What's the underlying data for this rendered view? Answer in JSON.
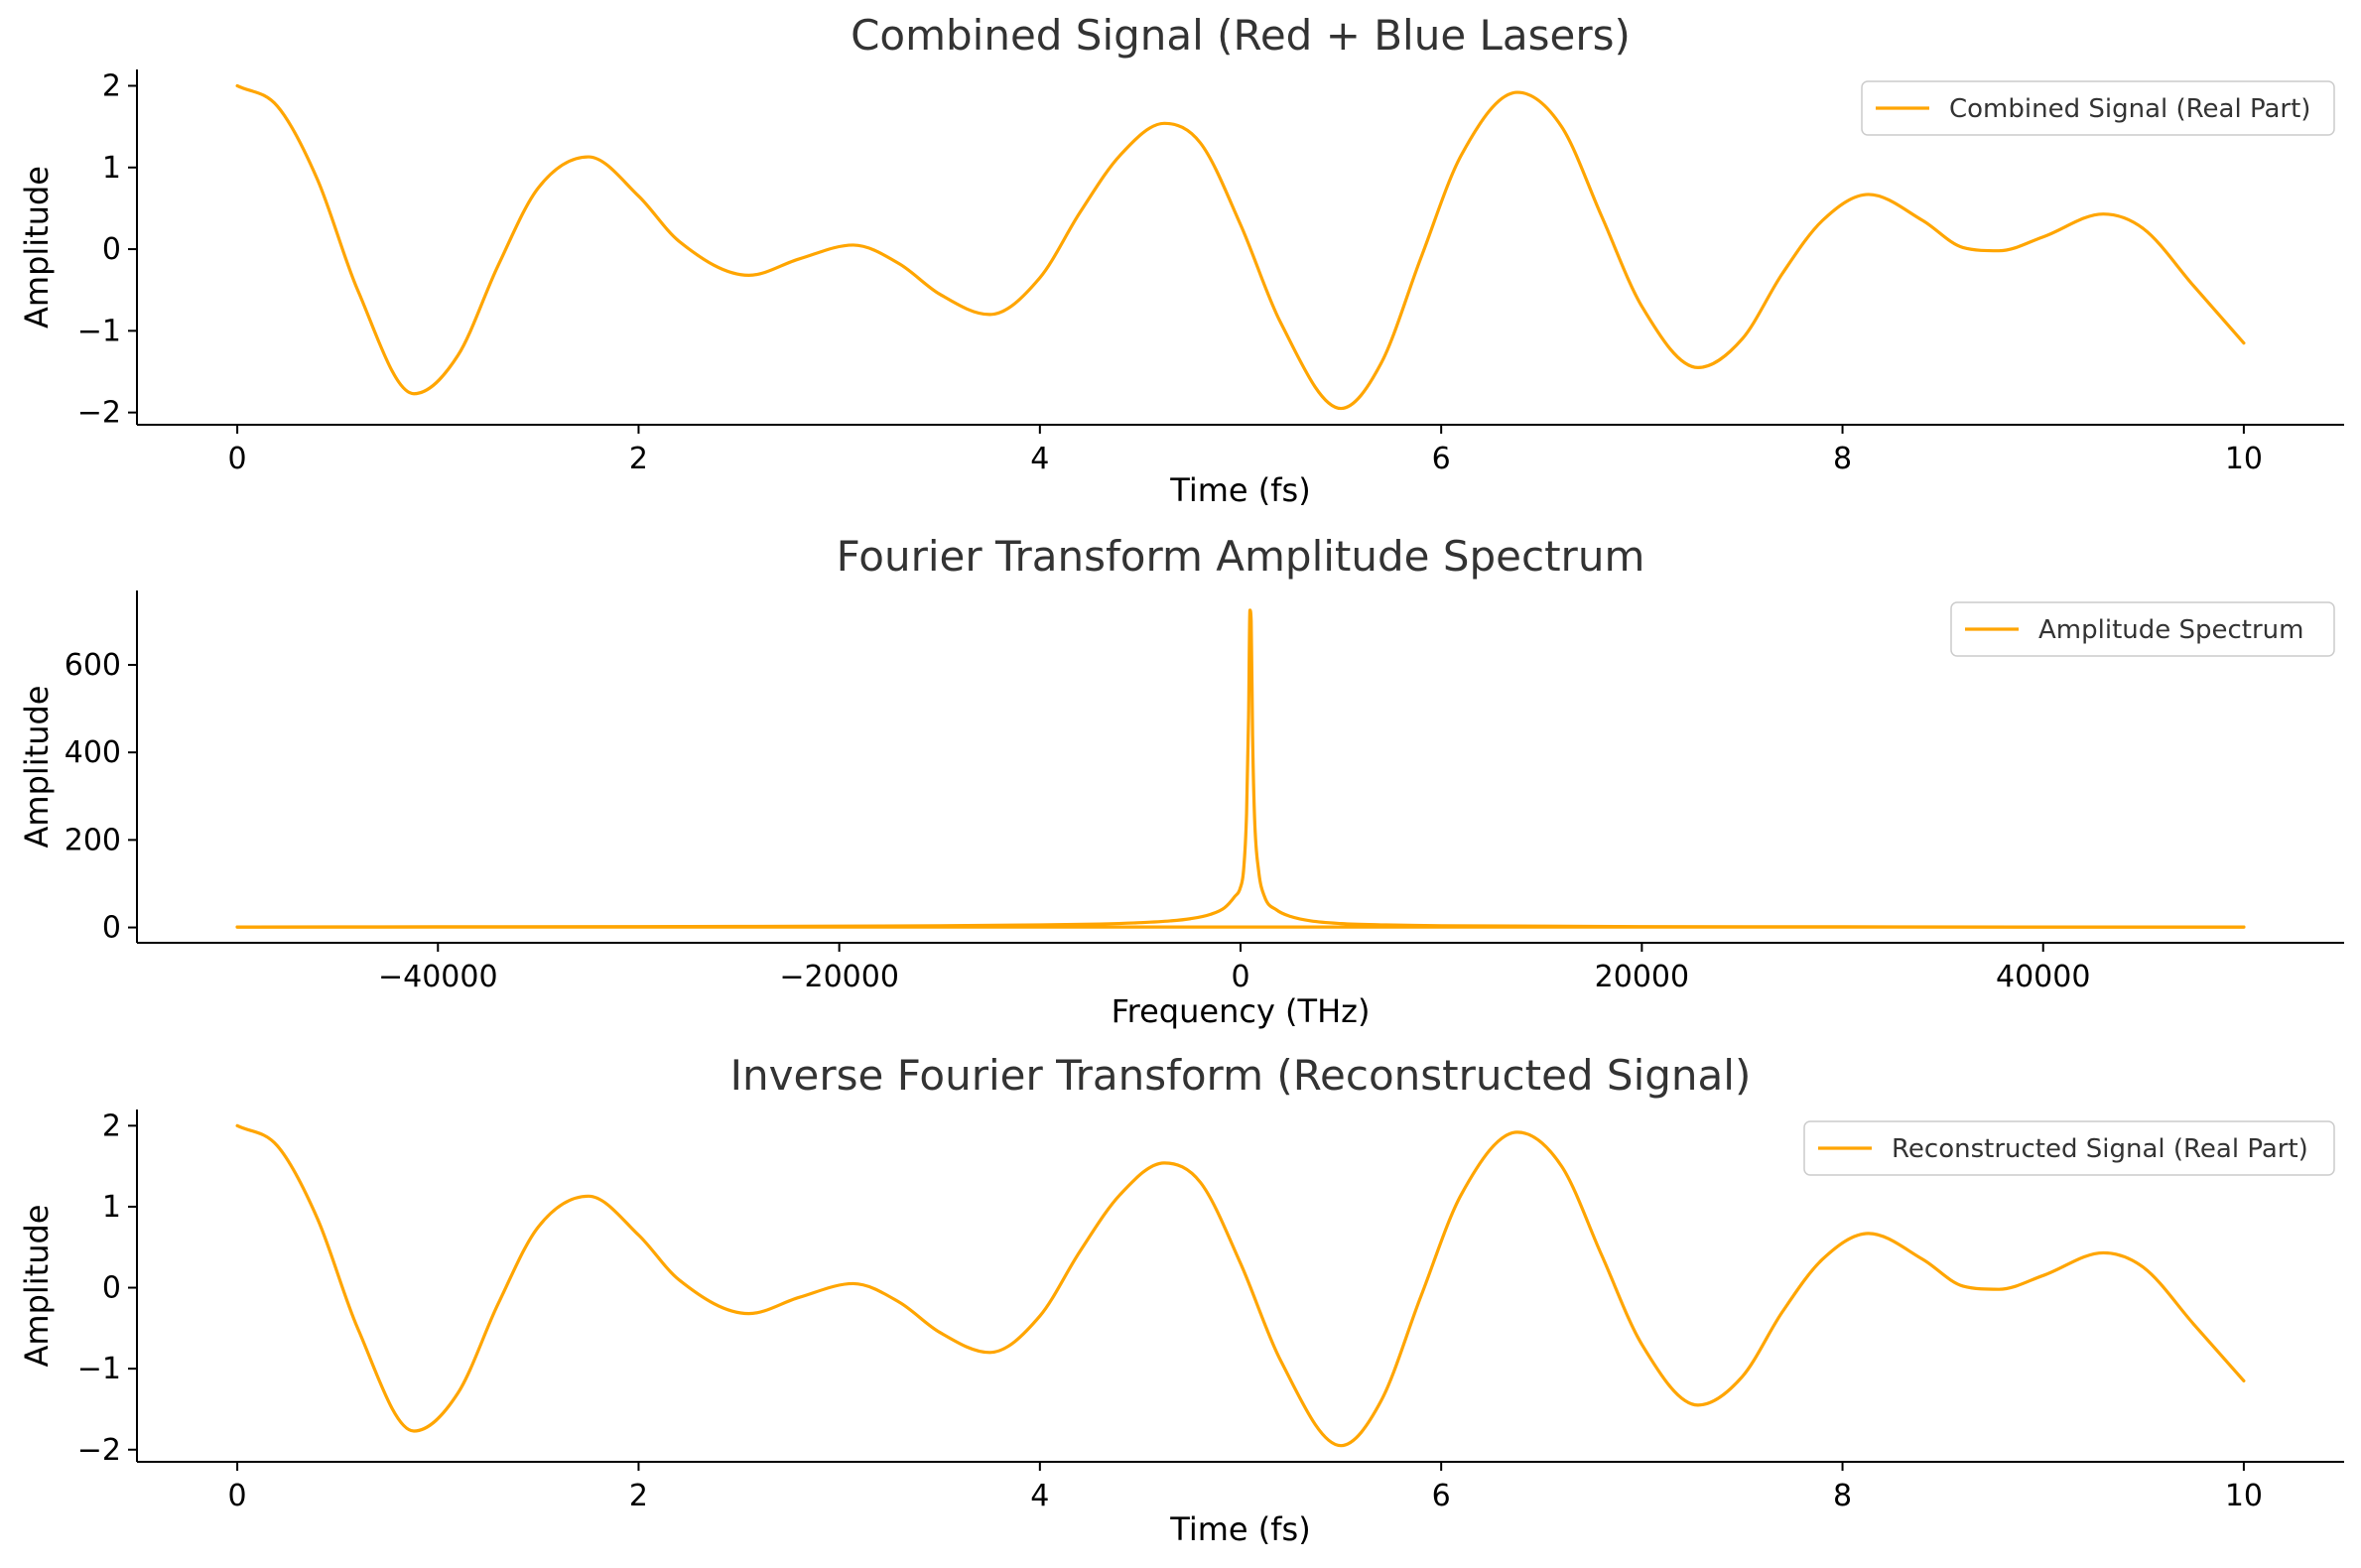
{
  "chart_data": [
    {
      "type": "line",
      "title": "Combined Signal (Red + Blue Lasers)",
      "xlabel": "Time (fs)",
      "ylabel": "Amplitude",
      "xlim": [
        -0.5,
        10.5
      ],
      "ylim": [
        -2.15,
        2.2
      ],
      "xticks": [
        0,
        2,
        4,
        6,
        8,
        10
      ],
      "xtick_labels": [
        "0",
        "2",
        "4",
        "6",
        "8",
        "10"
      ],
      "yticks": [
        -2,
        -1,
        0,
        1,
        2
      ],
      "ytick_labels": [
        "−2",
        "−1",
        "0",
        "1",
        "2"
      ],
      "grid": false,
      "legend": "top-right",
      "series": [
        {
          "name": "Combined Signal (Real Part)",
          "color": "#FFA500",
          "x": [
            0,
            0.2,
            0.4,
            0.6,
            0.88,
            1.1,
            1.3,
            1.5,
            1.75,
            2.0,
            2.2,
            2.55,
            2.8,
            3.07,
            3.3,
            3.5,
            3.75,
            4.0,
            4.2,
            4.4,
            4.62,
            4.8,
            5.0,
            5.2,
            5.5,
            5.7,
            5.9,
            6.1,
            6.38,
            6.6,
            6.8,
            7.0,
            7.28,
            7.5,
            7.7,
            7.9,
            8.13,
            8.4,
            8.6,
            8.78,
            9.0,
            9.3,
            9.5,
            9.75,
            10.0
          ],
          "y": [
            2.0,
            1.75,
            0.85,
            -0.5,
            -1.77,
            -1.3,
            -0.2,
            0.75,
            1.13,
            0.65,
            0.1,
            -0.32,
            -0.12,
            0.05,
            -0.18,
            -0.55,
            -0.8,
            -0.35,
            0.45,
            1.15,
            1.54,
            1.3,
            0.3,
            -0.9,
            -1.95,
            -1.4,
            -0.1,
            1.15,
            1.92,
            1.5,
            0.4,
            -0.7,
            -1.45,
            -1.1,
            -0.3,
            0.35,
            0.67,
            0.35,
            0.02,
            -0.02,
            0.15,
            0.43,
            0.25,
            -0.45,
            -1.15
          ]
        }
      ]
    },
    {
      "type": "line",
      "title": "Fourier Transform Amplitude Spectrum",
      "xlabel": "Frequency (THz)",
      "ylabel": "Amplitude",
      "xlim": [
        -55000,
        55000
      ],
      "ylim": [
        -35,
        770
      ],
      "xticks": [
        -40000,
        -20000,
        0,
        20000,
        40000
      ],
      "xtick_labels": [
        "−40000",
        "−20000",
        "0",
        "20000",
        "40000"
      ],
      "yticks": [
        0,
        200,
        400,
        600
      ],
      "ytick_labels": [
        "0",
        "200",
        "400",
        "600"
      ],
      "grid": false,
      "legend": "top-right",
      "series": [
        {
          "name": "Amplitude Spectrum",
          "color": "#FFA500",
          "x": [
            -50000,
            -40000,
            -30000,
            -20000,
            -15000,
            -10000,
            -7000,
            -5000,
            -3500,
            -2500,
            -1500,
            -800,
            -300,
            0,
            150,
            300,
            400,
            470,
            530,
            600,
            700,
            900,
            1200,
            1800,
            2500,
            3500,
            5000,
            7000,
            10000,
            15000,
            20000,
            30000,
            40000,
            50000
          ],
          "y": [
            1,
            1.5,
            2,
            3,
            4,
            6,
            8,
            11,
            15,
            20,
            30,
            45,
            70,
            92,
            130,
            260,
            480,
            725,
            700,
            440,
            250,
            130,
            70,
            40,
            25,
            15,
            9,
            6,
            4,
            3,
            2,
            1.5,
            1,
            1
          ]
        },
        {
          "name": "",
          "color": "#FFA500",
          "x": [
            -50000,
            50000
          ],
          "y": [
            1,
            1
          ]
        }
      ]
    },
    {
      "type": "line",
      "title": "Inverse Fourier Transform (Reconstructed Signal)",
      "xlabel": "Time (fs)",
      "ylabel": "Amplitude",
      "xlim": [
        -0.5,
        10.5
      ],
      "ylim": [
        -2.15,
        2.2
      ],
      "xticks": [
        0,
        2,
        4,
        6,
        8,
        10
      ],
      "xtick_labels": [
        "0",
        "2",
        "4",
        "6",
        "8",
        "10"
      ],
      "yticks": [
        -2,
        -1,
        0,
        1,
        2
      ],
      "ytick_labels": [
        "−2",
        "−1",
        "0",
        "1",
        "2"
      ],
      "grid": false,
      "legend": "top-right",
      "series": [
        {
          "name": "Reconstructed Signal (Real Part)",
          "color": "#FFA500",
          "x": [
            0,
            0.2,
            0.4,
            0.6,
            0.88,
            1.1,
            1.3,
            1.5,
            1.75,
            2.0,
            2.2,
            2.55,
            2.8,
            3.07,
            3.3,
            3.5,
            3.75,
            4.0,
            4.2,
            4.4,
            4.62,
            4.8,
            5.0,
            5.2,
            5.5,
            5.7,
            5.9,
            6.1,
            6.38,
            6.6,
            6.8,
            7.0,
            7.28,
            7.5,
            7.7,
            7.9,
            8.13,
            8.4,
            8.6,
            8.78,
            9.0,
            9.3,
            9.5,
            9.75,
            10.0
          ],
          "y": [
            2.0,
            1.75,
            0.85,
            -0.5,
            -1.77,
            -1.3,
            -0.2,
            0.75,
            1.13,
            0.65,
            0.1,
            -0.32,
            -0.12,
            0.05,
            -0.18,
            -0.55,
            -0.8,
            -0.35,
            0.45,
            1.15,
            1.54,
            1.3,
            0.3,
            -0.9,
            -1.95,
            -1.4,
            -0.1,
            1.15,
            1.92,
            1.5,
            0.4,
            -0.7,
            -1.45,
            -1.1,
            -0.3,
            0.35,
            0.67,
            0.35,
            0.02,
            -0.02,
            0.15,
            0.43,
            0.25,
            -0.45,
            -1.15
          ]
        }
      ]
    }
  ]
}
